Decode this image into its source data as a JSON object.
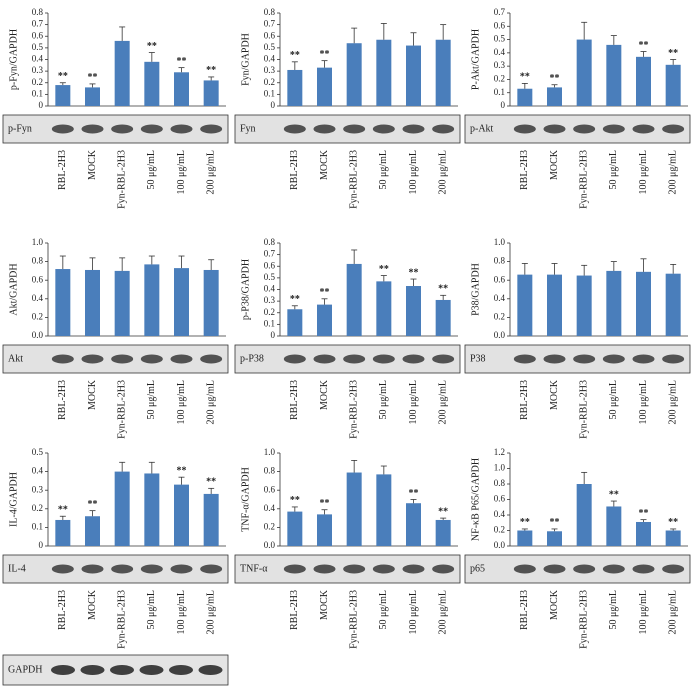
{
  "chart_data": [
    {
      "type": "bar",
      "y_label": "p-Fyn/GAPDH",
      "blot_label": "p-Fyn",
      "color": "#4a7ebb",
      "categories": [
        "RBL-2H3",
        "MOCK",
        "Fyn-RBL-2H3",
        "50 μg/mL",
        "100 μg/mL",
        "200 μg/mL"
      ],
      "values": [
        0.18,
        0.16,
        0.56,
        0.38,
        0.29,
        0.22
      ],
      "errors": [
        0.02,
        0.03,
        0.12,
        0.08,
        0.04,
        0.03
      ],
      "significance": [
        "**",
        "**",
        null,
        "**",
        "**",
        "**"
      ],
      "ylim": [
        0,
        0.8
      ],
      "yticks": [
        0,
        0.1,
        0.2,
        0.3,
        0.4,
        0.5,
        0.6,
        0.7,
        0.8
      ]
    },
    {
      "type": "bar",
      "y_label": "Fyn/GAPDH",
      "blot_label": "Fyn",
      "color": "#4a7ebb",
      "categories": [
        "RBL-2H3",
        "MOCK",
        "Fyn-RBL-2H3",
        "50 μg/mL",
        "100 μg/mL",
        "200 μg/mL"
      ],
      "values": [
        0.31,
        0.33,
        0.54,
        0.57,
        0.52,
        0.57
      ],
      "errors": [
        0.07,
        0.06,
        0.13,
        0.14,
        0.11,
        0.13
      ],
      "significance": [
        "**",
        "**",
        null,
        null,
        null,
        null
      ],
      "ylim": [
        0,
        0.8
      ],
      "yticks": [
        0,
        0.1,
        0.2,
        0.3,
        0.4,
        0.5,
        0.6,
        0.7,
        0.8
      ]
    },
    {
      "type": "bar",
      "y_label": "P-Akt/GAPDH",
      "blot_label": "p-Akt",
      "color": "#4a7ebb",
      "categories": [
        "RBL-2H3",
        "MOCK",
        "Fyn-RBL-2H3",
        "50 μg/mL",
        "100 μg/mL",
        "200 μg/mL"
      ],
      "values": [
        0.13,
        0.14,
        0.5,
        0.46,
        0.37,
        0.31
      ],
      "errors": [
        0.04,
        0.02,
        0.13,
        0.07,
        0.04,
        0.04
      ],
      "significance": [
        "**",
        "**",
        null,
        null,
        "**",
        "**"
      ],
      "ylim": [
        0,
        0.7
      ],
      "yticks": [
        0,
        0.1,
        0.2,
        0.3,
        0.4,
        0.5,
        0.6,
        0.7
      ]
    },
    {
      "type": "bar",
      "y_label": "Akt/GAPDH",
      "blot_label": "Akt",
      "color": "#4a7ebb",
      "categories": [
        "RBL-2H3",
        "MOCK",
        "Fyn-RBL-2H3",
        "50 μg/mL",
        "100 μg/mL",
        "200 μg/mL"
      ],
      "values": [
        0.72,
        0.71,
        0.7,
        0.77,
        0.73,
        0.71
      ],
      "errors": [
        0.14,
        0.13,
        0.14,
        0.09,
        0.13,
        0.11
      ],
      "significance": [
        null,
        null,
        null,
        null,
        null,
        null
      ],
      "ylim": [
        0,
        1
      ],
      "yticks": [
        {
          "value": 0,
          "label": "0.0"
        },
        0.2,
        0.4,
        0.6,
        0.8,
        {
          "value": 1,
          "label": "1.0"
        }
      ]
    },
    {
      "type": "bar",
      "y_label": "p-P38/GAPDH",
      "blot_label": "p-P38",
      "color": "#4a7ebb",
      "categories": [
        "RBL-2H3",
        "MOCK",
        "Fyn-RBL-2H3",
        "50 μg/mL",
        "100 μg/mL",
        "200 μg/mL"
      ],
      "values": [
        0.23,
        0.27,
        0.62,
        0.47,
        0.43,
        0.31
      ],
      "errors": [
        0.03,
        0.05,
        0.12,
        0.05,
        0.06,
        0.04
      ],
      "significance": [
        "**",
        "**",
        null,
        "**",
        "**",
        "**"
      ],
      "ylim": [
        0,
        0.8
      ],
      "yticks": [
        0,
        0.1,
        0.2,
        0.3,
        0.4,
        0.5,
        0.6,
        0.7,
        0.8
      ]
    },
    {
      "type": "bar",
      "y_label": "P38/GAPDH",
      "blot_label": "P38",
      "color": "#4a7ebb",
      "categories": [
        "RBL-2H3",
        "MOCK",
        "Fyn-RBL-2H3",
        "50 μg/mL",
        "100 μg/mL",
        "200 μg/mL"
      ],
      "values": [
        0.66,
        0.66,
        0.65,
        0.7,
        0.69,
        0.67
      ],
      "errors": [
        0.12,
        0.12,
        0.11,
        0.1,
        0.14,
        0.1
      ],
      "significance": [
        null,
        null,
        null,
        null,
        null,
        null
      ],
      "ylim": [
        0,
        1
      ],
      "yticks": [
        {
          "value": 0,
          "label": "0.0"
        },
        0.2,
        0.4,
        0.6,
        0.8,
        {
          "value": 1,
          "label": "1.0"
        }
      ]
    },
    {
      "type": "bar",
      "y_label": "IL-4/GAPDH",
      "blot_label": "IL-4",
      "color": "#4a7ebb",
      "categories": [
        "RBL-2H3",
        "MOCK",
        "Fyn-RBL-2H3",
        "50 μg/mL",
        "100 μg/mL",
        "200 μg/mL"
      ],
      "values": [
        0.14,
        0.16,
        0.4,
        0.39,
        0.33,
        0.28
      ],
      "errors": [
        0.02,
        0.03,
        0.05,
        0.06,
        0.04,
        0.03
      ],
      "significance": [
        "**",
        "**",
        null,
        null,
        "**",
        "**"
      ],
      "ylim": [
        0,
        0.5
      ],
      "yticks": [
        0,
        0.1,
        0.2,
        0.3,
        0.4,
        0.5
      ]
    },
    {
      "type": "bar",
      "y_label": "TNF-α/GAPDH",
      "blot_label": "TNF-α",
      "color": "#4a7ebb",
      "categories": [
        "RBL-2H3",
        "MOCK",
        "Fyn-RBL-2H3",
        "50 μg/mL",
        "100 μg/mL",
        "200 μg/mL"
      ],
      "values": [
        0.37,
        0.34,
        0.79,
        0.77,
        0.46,
        0.28
      ],
      "errors": [
        0.05,
        0.05,
        0.13,
        0.09,
        0.04,
        0.02
      ],
      "significance": [
        "**",
        "**",
        null,
        null,
        "**",
        "**"
      ],
      "ylim": [
        0,
        1
      ],
      "yticks": [
        {
          "value": 0,
          "label": "0.0"
        },
        0.2,
        0.4,
        0.6,
        0.8,
        {
          "value": 1,
          "label": "1.0"
        }
      ]
    },
    {
      "type": "bar",
      "y_label": "NF-κB P65/GAPDH",
      "blot_label": "p65",
      "color": "#4a7ebb",
      "categories": [
        "RBL-2H3",
        "MOCK",
        "Fyn-RBL-2H3",
        "50 μg/mL",
        "100 μg/mL",
        "200 μg/mL"
      ],
      "values": [
        0.2,
        0.19,
        0.8,
        0.51,
        0.31,
        0.2
      ],
      "errors": [
        0.02,
        0.03,
        0.15,
        0.07,
        0.03,
        0.02
      ],
      "significance": [
        "**",
        "**",
        null,
        "**",
        "**",
        "**"
      ],
      "ylim": [
        0,
        1.2
      ],
      "yticks": [
        {
          "value": 0,
          "label": "0.0"
        },
        0.2,
        0.4,
        0.6,
        0.8,
        {
          "value": 1,
          "label": "1.0"
        },
        1.2
      ]
    }
  ],
  "loading_control": "GAPDH"
}
